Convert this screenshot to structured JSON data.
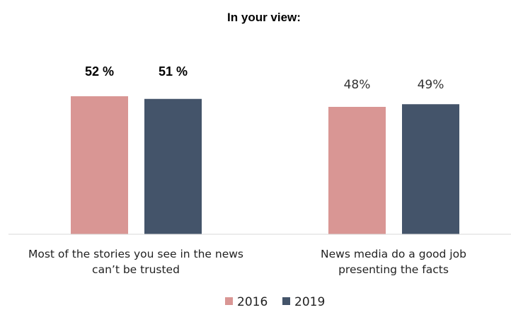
{
  "chart_data": {
    "type": "bar",
    "title": "In your view:",
    "categories": [
      [
        "Most of the stories you see in the news",
        "can’t be trusted"
      ],
      [
        "News media do a good job",
        "presenting the facts"
      ]
    ],
    "series": [
      {
        "name": "2016",
        "color": "#d99694",
        "values": [
          52,
          48
        ],
        "labels": [
          "52 %",
          "48%"
        ]
      },
      {
        "name": "2019",
        "color": "#44546a",
        "values": [
          51,
          49
        ],
        "labels": [
          "51 %",
          "49%"
        ]
      }
    ],
    "label_style": [
      "bold",
      "plain"
    ],
    "ylim": [
      0,
      100
    ],
    "grid": false,
    "legend_position": "bottom"
  }
}
